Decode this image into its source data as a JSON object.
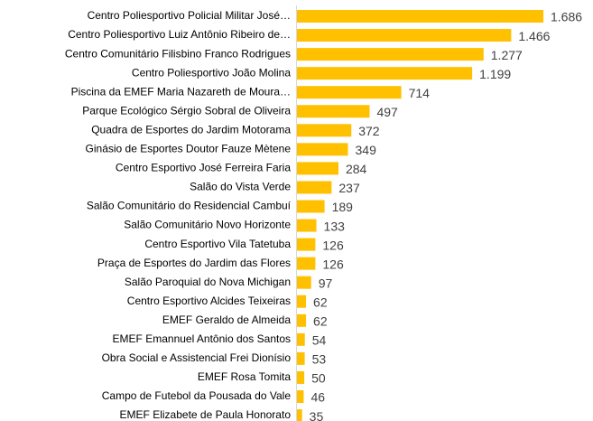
{
  "chart_data": {
    "type": "barh",
    "color": "#ffc000",
    "categories": [
      "Centro Poliesportivo Policial Militar José…",
      "Centro Poliesportivo Luiz Antônio Ribeiro de…",
      "Centro Comunitário Filisbino Franco Rodrigues",
      "Centro Poliesportivo João Molina",
      "Piscina da EMEF Maria Nazareth de Moura…",
      "Parque Ecológico Sérgio Sobral de Oliveira",
      "Quadra de Esportes do Jardim Motorama",
      "Ginásio de Esportes Doutor Fauze Mètene",
      "Centro Esportivo José Ferreira Faria",
      "Salão do Vista Verde",
      "Salão Comunitário do Residencial Cambuí",
      "Salão Comunitário Novo Horizonte",
      "Centro Esportivo Vila Tatetuba",
      "Praça de Esportes do Jardim das Flores",
      "Salão Paroquial do Nova Michigan",
      "Centro Esportivo Alcides Teixeiras",
      "EMEF Geraldo de Almeida",
      "EMEF Emannuel Antônio dos Santos",
      "Obra Social e Assistencial Frei Dionísio",
      "EMEF Rosa Tomita",
      "Campo de Futebol da Pousada do Vale",
      "EMEF Elizabete de Paula Honorato"
    ],
    "values": [
      1686,
      1466,
      1277,
      1199,
      714,
      497,
      372,
      349,
      284,
      237,
      189,
      133,
      126,
      126,
      97,
      62,
      62,
      54,
      53,
      50,
      46,
      35
    ],
    "value_labels": [
      "1.686",
      "1.466",
      "1.277",
      "1.199",
      "714",
      "497",
      "372",
      "349",
      "284",
      "237",
      "189",
      "133",
      "126",
      "126",
      "97",
      "62",
      "62",
      "54",
      "53",
      "50",
      "46",
      "35"
    ]
  }
}
